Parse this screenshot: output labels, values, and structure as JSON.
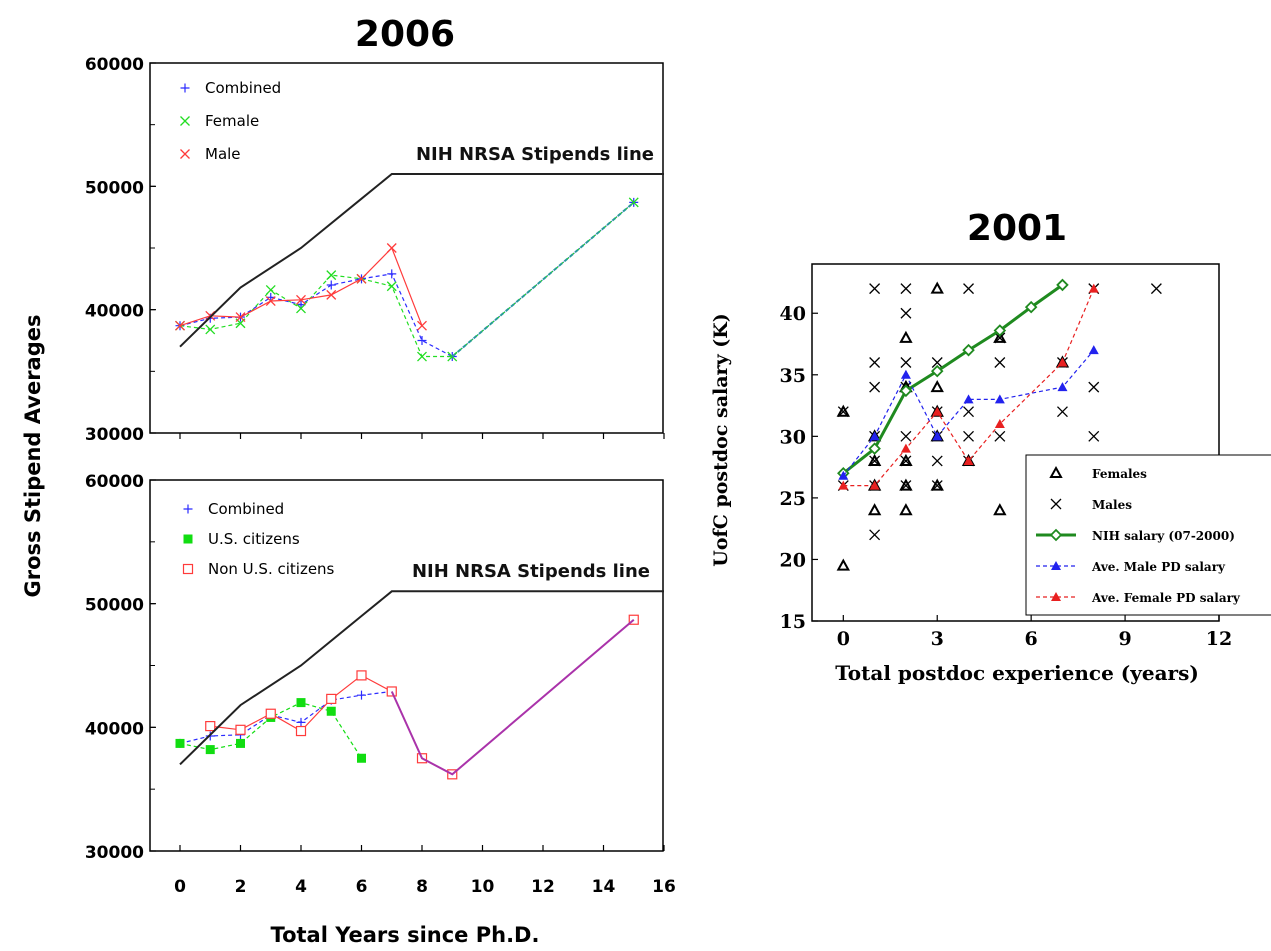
{
  "chart_data": [
    {
      "type": "line",
      "title": "2006",
      "ylabel": "Gross Stipend Averages",
      "xlabel": "Total Years since Ph.D.",
      "ylim": [
        30000,
        60000
      ],
      "xlim": [
        0,
        16
      ],
      "yticks": [
        "30000",
        "40000",
        "50000",
        "60000"
      ],
      "xticks": [],
      "annotation": "NIH NRSA Stipends line",
      "legend_position": "top-left",
      "series": [
        {
          "name": "Combined",
          "marker": "plus",
          "color": "#2b2bff",
          "dash": true,
          "x": [
            0,
            1,
            2,
            3,
            4,
            5,
            6,
            7,
            8,
            9,
            15
          ],
          "y": [
            38700,
            39300,
            39400,
            41000,
            40400,
            42000,
            42500,
            42900,
            37500,
            36200,
            48700
          ]
        },
        {
          "name": "Female",
          "marker": "x",
          "color": "#22dd22",
          "dash": true,
          "x": [
            0,
            1,
            2,
            3,
            4,
            5,
            6,
            7,
            8,
            9,
            15
          ],
          "y": [
            38700,
            38400,
            38900,
            41600,
            40100,
            42800,
            42500,
            41900,
            36200,
            36200,
            48700
          ]
        },
        {
          "name": "Male",
          "marker": "x",
          "color": "#ff3b3b",
          "dash": false,
          "x": [
            0,
            1,
            2,
            3,
            4,
            5,
            6,
            7,
            8
          ],
          "y": [
            38700,
            39500,
            39400,
            40700,
            40800,
            41200,
            42500,
            45000,
            38700
          ]
        },
        {
          "name": "",
          "marker": "none",
          "color": "#2a9a9a",
          "dash": true,
          "x": [
            9,
            15
          ],
          "y": [
            36200,
            48700
          ]
        },
        {
          "name": "",
          "marker": "none",
          "color": "#222222",
          "dash": false,
          "x": [
            0,
            2,
            4,
            6,
            7,
            16
          ],
          "y": [
            37000,
            41800,
            45000,
            49000,
            51000,
            51000
          ]
        }
      ]
    },
    {
      "type": "line",
      "ylim": [
        30000,
        60000
      ],
      "xlim": [
        0,
        16
      ],
      "yticks": [
        "30000",
        "40000",
        "50000",
        "60000"
      ],
      "xticks": [
        "0",
        "2",
        "4",
        "6",
        "8",
        "10",
        "12",
        "14",
        "16"
      ],
      "annotation": "NIH NRSA Stipends line",
      "legend_position": "top-left",
      "series": [
        {
          "name": "Combined",
          "marker": "plus",
          "color": "#2b2bff",
          "dash": true,
          "x": [
            0,
            1,
            2,
            3,
            4,
            5,
            6,
            7,
            8,
            9,
            15
          ],
          "y": [
            38700,
            39300,
            39400,
            41000,
            40400,
            42200,
            42600,
            42900,
            37500,
            36200,
            48700
          ]
        },
        {
          "name": "U.S. citizens",
          "marker": "square-filled",
          "color": "#11dd11",
          "dash": true,
          "x": [
            0,
            1,
            2,
            3,
            4,
            5,
            6
          ],
          "y": [
            38700,
            38200,
            38700,
            40800,
            42000,
            41300,
            37500
          ]
        },
        {
          "name": "Non U.S. citizens",
          "marker": "square-open",
          "color": "#ff3b3b",
          "dash": false,
          "x": [
            1,
            2,
            3,
            4,
            5,
            6,
            7,
            8,
            9,
            15
          ],
          "y": [
            40100,
            39800,
            41100,
            39700,
            42300,
            44200,
            42900,
            37500,
            36200,
            48700
          ]
        },
        {
          "name": "",
          "marker": "none",
          "color": "#aa33aa",
          "dash": false,
          "x": [
            7,
            8,
            9,
            15
          ],
          "y": [
            42900,
            37500,
            36200,
            48700
          ]
        },
        {
          "name": "",
          "marker": "none",
          "color": "#222222",
          "dash": false,
          "x": [
            0,
            2,
            4,
            6,
            7,
            16
          ],
          "y": [
            37000,
            41800,
            45000,
            49000,
            51000,
            51000
          ]
        }
      ]
    },
    {
      "type": "scatter",
      "title": "2001",
      "ylabel": "UofC postdoc salary (K)",
      "xlabel": "Total postdoc experience (years)",
      "xlim": [
        -1,
        12
      ],
      "ylim": [
        15,
        44
      ],
      "xticks": [
        "0",
        "3",
        "6",
        "9",
        "12"
      ],
      "yticks": [
        "15",
        "20",
        "25",
        "30",
        "35",
        "40"
      ],
      "legend_position": "bottom-right",
      "series": [
        {
          "name": "Females",
          "marker": "triangle-open",
          "color": "#000000",
          "x": [
            0,
            0,
            1,
            1,
            1,
            1,
            2,
            2,
            2,
            2,
            2,
            2,
            3,
            3,
            3,
            3,
            3,
            4,
            5,
            5,
            7
          ],
          "y": [
            32,
            19.5,
            30,
            28,
            26,
            24,
            38,
            34,
            28,
            26,
            24,
            34,
            42,
            34,
            32,
            30,
            26,
            28,
            38,
            24,
            36
          ]
        },
        {
          "name": "Males",
          "marker": "x",
          "color": "#000000",
          "x": [
            0,
            0,
            1,
            1,
            1,
            1,
            1,
            1,
            1,
            2,
            2,
            2,
            2,
            2,
            2,
            2,
            3,
            3,
            3,
            3,
            3,
            4,
            4,
            4,
            4,
            5,
            5,
            5,
            7,
            7,
            8,
            8,
            8,
            10
          ],
          "y": [
            32,
            26,
            42,
            36,
            34,
            30,
            28,
            26,
            22,
            42,
            40,
            36,
            34,
            30,
            28,
            26,
            36,
            32,
            30,
            28,
            26,
            42,
            32,
            30,
            28,
            38,
            36,
            30,
            36,
            32,
            42,
            34,
            30,
            42
          ]
        },
        {
          "name": "NIH salary (07-2000)",
          "marker": "diamond-open",
          "color": "#1f8a1f",
          "dash": false,
          "x": [
            0,
            1,
            2,
            3,
            4,
            5,
            6,
            7
          ],
          "y": [
            27,
            29,
            33.7,
            35.3,
            37,
            38.6,
            40.5,
            42.3
          ]
        },
        {
          "name": "Ave. Male PD salary",
          "marker": "triangle-filled",
          "color": "#2222ee",
          "dash": true,
          "x": [
            0,
            1,
            2,
            3,
            4,
            5,
            7,
            8
          ],
          "y": [
            26.8,
            30,
            35,
            30,
            33,
            33,
            34,
            37
          ]
        },
        {
          "name": "Ave. Female PD salary",
          "marker": "triangle-filled",
          "color": "#e82020",
          "dash": true,
          "x": [
            0,
            1,
            2,
            3,
            4,
            5,
            7,
            8
          ],
          "y": [
            26,
            26,
            29,
            32,
            28,
            31,
            36,
            42
          ]
        }
      ]
    }
  ]
}
